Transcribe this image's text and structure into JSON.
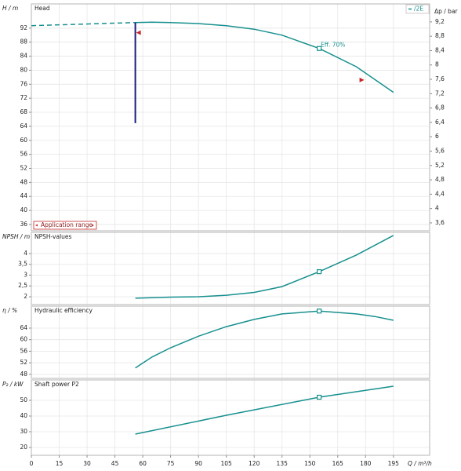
{
  "chart_data": [
    {
      "type": "line",
      "title": "Head",
      "y_label": "H / m",
      "y2_label": "Δp / bar",
      "xlim": [
        0,
        214.5
      ],
      "ylim": [
        34.2,
        98.9
      ],
      "yticks": [
        36,
        40,
        44,
        48,
        52,
        56,
        60,
        64,
        68,
        72,
        76,
        80,
        84,
        88,
        92
      ],
      "y2lim": [
        3.38,
        9.7
      ],
      "y2ticks": [
        {
          "value": 3.6,
          "label": "3,6"
        },
        4,
        {
          "value": 4.4,
          "label": "4,4"
        },
        {
          "value": 4.8,
          "label": "4,8"
        },
        {
          "value": 5.2,
          "label": "5,2"
        },
        {
          "value": 5.6,
          "label": "5,6"
        },
        6,
        {
          "value": 6.4,
          "label": "6,4"
        },
        {
          "value": 6.8,
          "label": "6,8"
        },
        {
          "value": 7.2,
          "label": "7,2"
        },
        {
          "value": 7.6,
          "label": "7,6"
        },
        8,
        {
          "value": 8.4,
          "label": "8,4"
        },
        {
          "value": 8.8,
          "label": "8,8"
        },
        {
          "value": 9.2,
          "label": "9,2"
        }
      ],
      "series": [
        {
          "name": "/2E",
          "color": "#17908f",
          "x": [
            56,
            65,
            75,
            90,
            105,
            120,
            135,
            155,
            175,
            195
          ],
          "values": [
            93.6,
            93.7,
            93.6,
            93.3,
            92.7,
            91.7,
            90.0,
            86.2,
            81.0,
            73.7
          ]
        },
        {
          "color": "#17908f",
          "dashed": true,
          "x": [
            0,
            56
          ],
          "values": [
            92.7,
            93.6
          ]
        },
        {
          "color": "#1c1f7a",
          "x": [
            56,
            56
          ],
          "values": [
            93.6,
            64.9
          ]
        }
      ],
      "markers": [
        {
          "x": 155,
          "y": 86.2,
          "label": "Eff. 70%"
        }
      ],
      "triangles": [
        {
          "x": 57.7,
          "y": 90.7,
          "direction": "left"
        },
        {
          "x": 178,
          "y": 77.2,
          "direction": "right"
        }
      ],
      "annotation": "Application range",
      "legend": "top-right",
      "grid": true
    },
    {
      "type": "line",
      "title": "NPSH-values",
      "y_label": "NPSH / m",
      "xlim": [
        0,
        214.5
      ],
      "ylim": [
        1.636,
        4.98
      ],
      "yticks": [
        2,
        {
          "value": 2.5,
          "label": "2,5"
        },
        3,
        {
          "value": 3.5,
          "label": "3,5"
        },
        4
      ],
      "series": [
        {
          "color": "#17908f",
          "x": [
            56,
            75,
            90,
            105,
            120,
            135,
            155,
            175,
            195
          ],
          "values": [
            1.93,
            1.98,
            2.0,
            2.07,
            2.2,
            2.47,
            3.16,
            3.93,
            4.84
          ]
        }
      ],
      "markers": [
        {
          "x": 155,
          "y": 3.16
        }
      ],
      "grid": true
    },
    {
      "type": "line",
      "title": "Hydraulic efficiency",
      "y_label": "η / %",
      "xlim": [
        0,
        214.5
      ],
      "ylim": [
        46.6,
        71.6
      ],
      "yticks": [
        48,
        52,
        56,
        60,
        64
      ],
      "series": [
        {
          "color": "#17908f",
          "x": [
            56,
            65,
            75,
            90,
            105,
            120,
            135,
            155,
            175,
            185,
            195
          ],
          "values": [
            50.2,
            54.0,
            57.2,
            61.2,
            64.5,
            67.0,
            68.9,
            69.9,
            68.9,
            68.0,
            66.7
          ]
        }
      ],
      "markers": [
        {
          "x": 155,
          "y": 69.9
        }
      ],
      "grid": true
    },
    {
      "type": "line",
      "title": "Shaft power P2",
      "y_label": "P₂ / kW",
      "x_label": "Q / m³/h",
      "xlim": [
        0,
        214.5
      ],
      "ylim": [
        15,
        63
      ],
      "yticks": [
        20,
        30,
        40,
        50
      ],
      "xticks": [
        0,
        15,
        30,
        45,
        60,
        75,
        90,
        105,
        120,
        135,
        150,
        165,
        180,
        195
      ],
      "series": [
        {
          "color": "#17908f",
          "x": [
            56,
            105,
            155,
            195
          ],
          "values": [
            28.5,
            40.5,
            52,
            59
          ]
        }
      ],
      "markers": [
        {
          "x": 155,
          "y": 52
        }
      ],
      "grid": true
    }
  ]
}
